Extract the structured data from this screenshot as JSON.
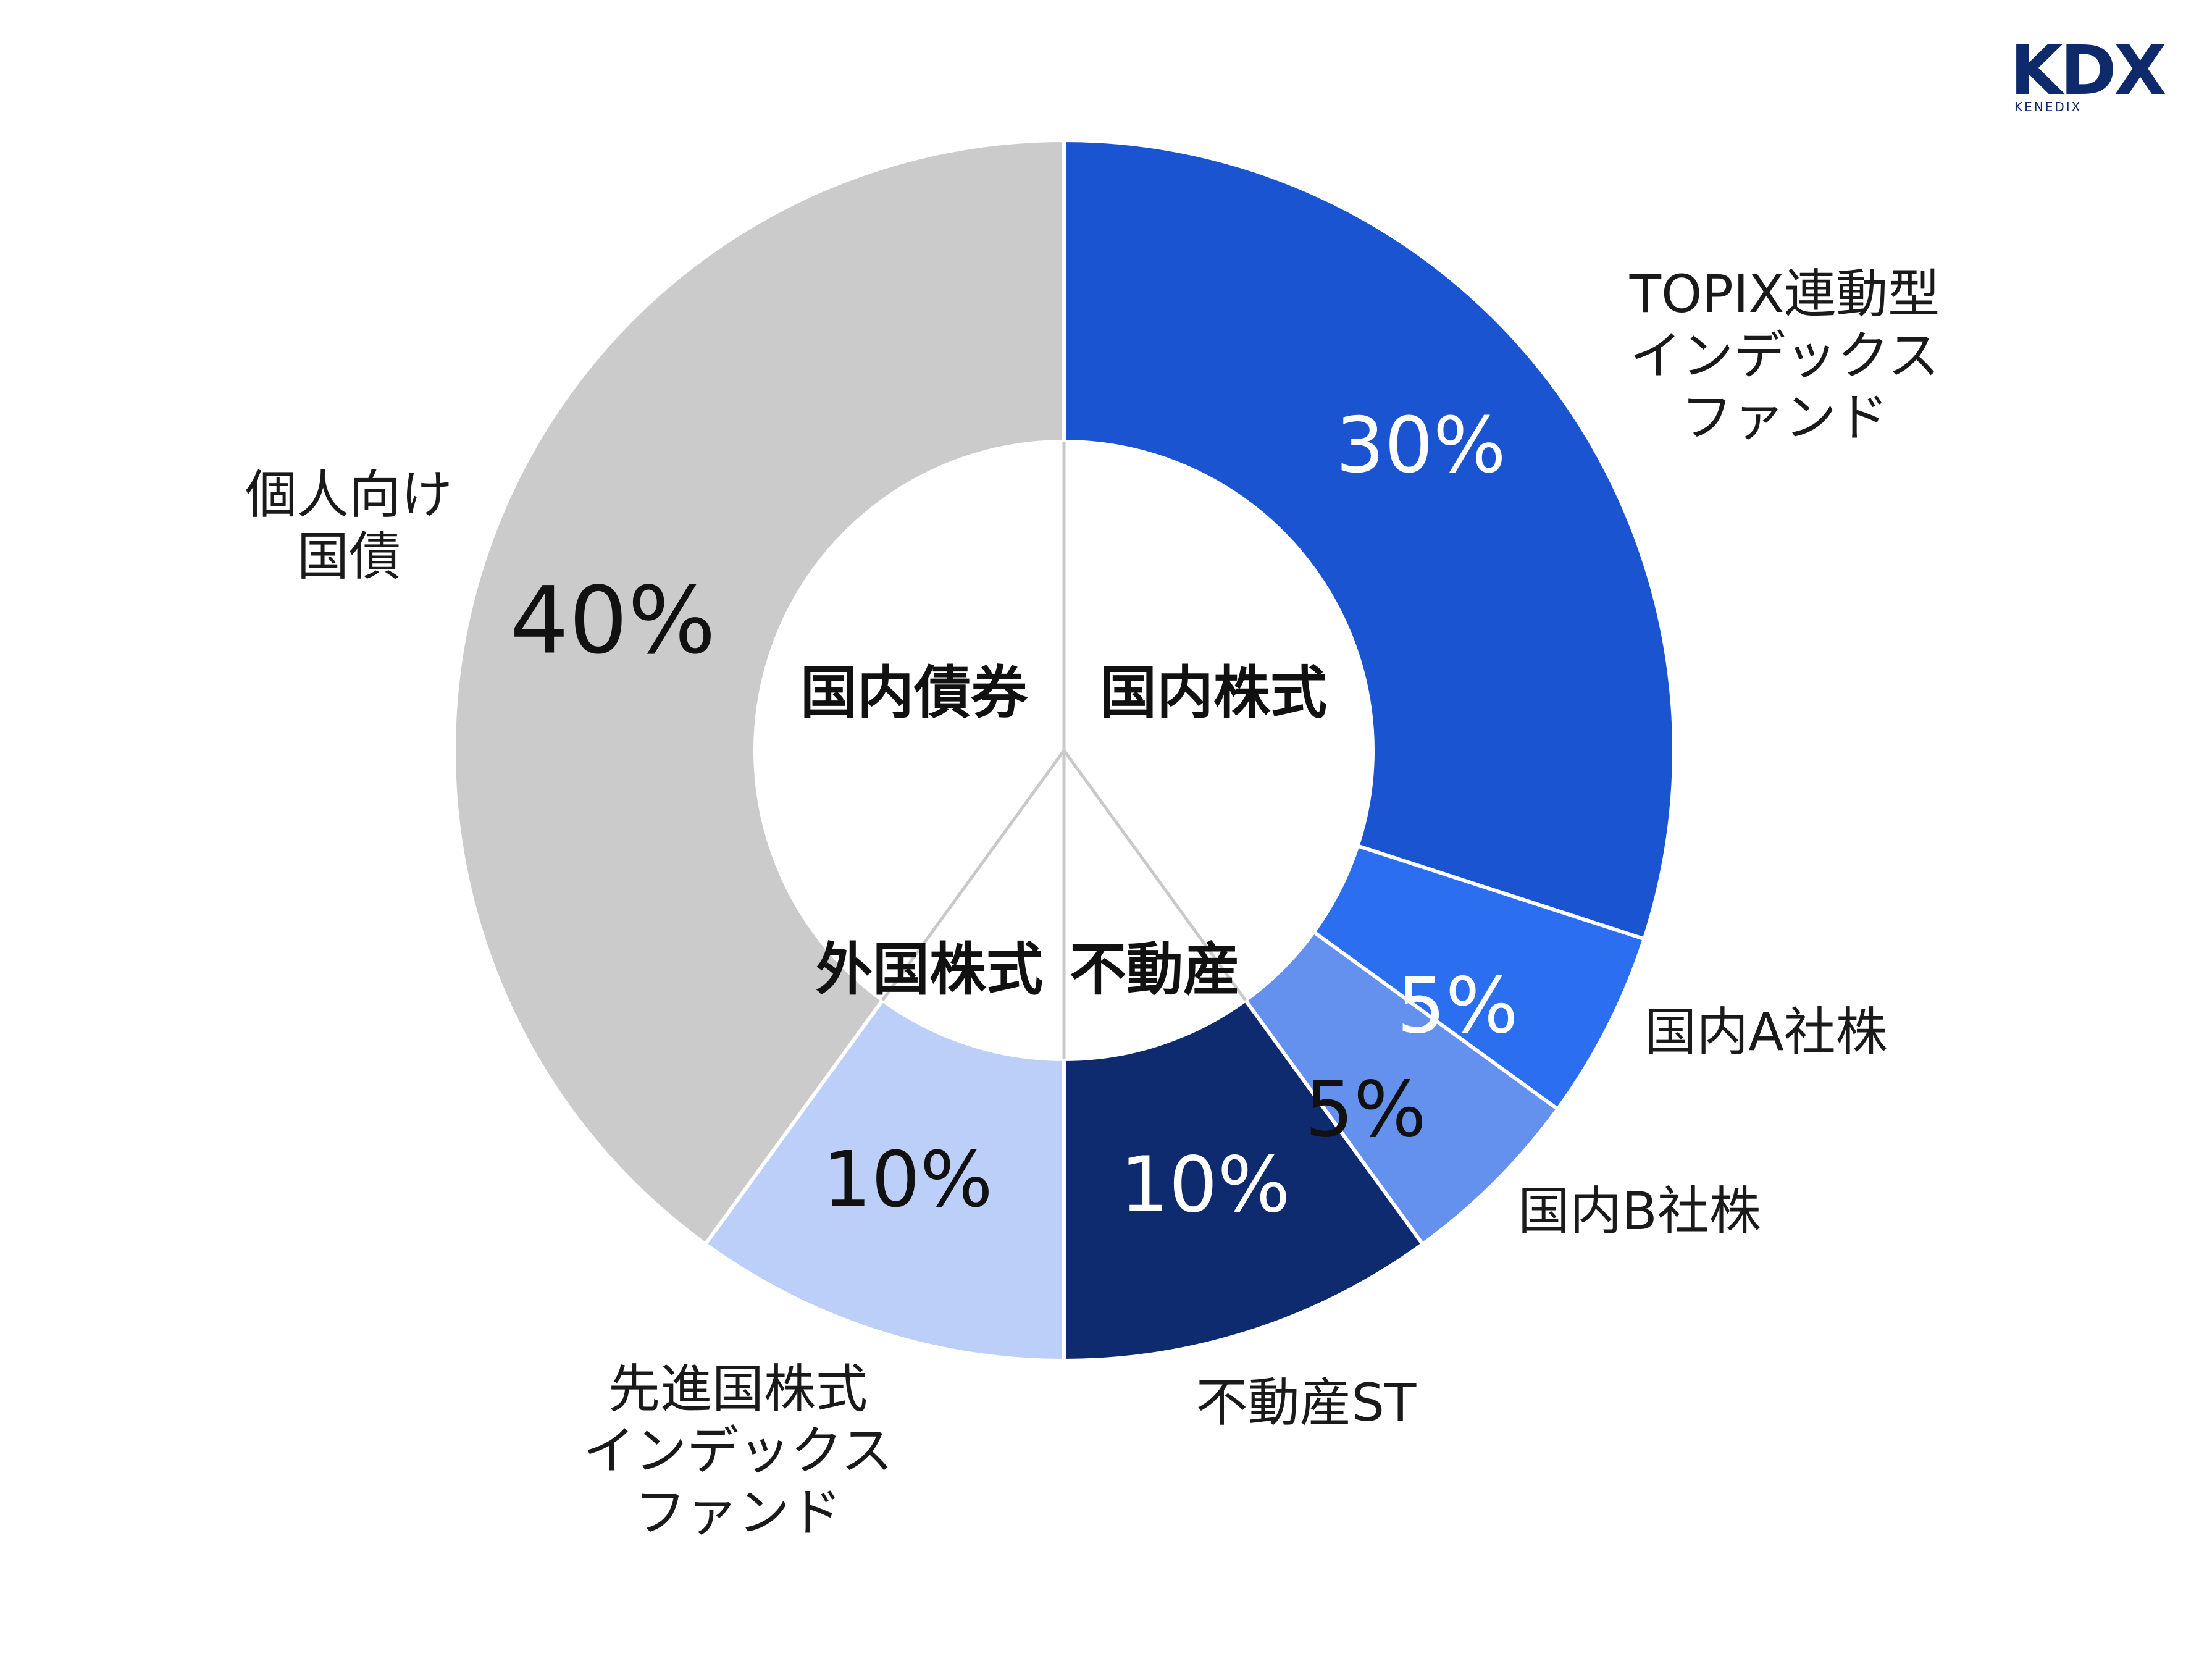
{
  "logo": {
    "main": "KDX",
    "sub": "KENEDIX"
  },
  "chart_data": {
    "type": "pie",
    "subtype": "nested-donut",
    "slices": [
      {
        "label": "TOPIX連動型インデックスファンド",
        "label_lines": [
          "TOPIX連動型",
          "インデックス",
          "ファンド"
        ],
        "value": 30,
        "value_label": "30%",
        "color": "#1a54d0",
        "text_color": "#ffffff",
        "category": "国内株式"
      },
      {
        "label": "国内A社株",
        "label_lines": [
          "国内A社株"
        ],
        "value": 5,
        "value_label": "5%",
        "color": "#2b6ff0",
        "text_color": "#ffffff",
        "category": "国内株式"
      },
      {
        "label": "国内B社株",
        "label_lines": [
          "国内B社株"
        ],
        "value": 5,
        "value_label": "5%",
        "color": "#6490ee",
        "text_color": "#111111",
        "category": "国内株式"
      },
      {
        "label": "不動産ST",
        "label_lines": [
          "不動産ST"
        ],
        "value": 10,
        "value_label": "10%",
        "color": "#0f2b70",
        "text_color": "#ffffff",
        "category": "不動産"
      },
      {
        "label": "先進国株式インデックスファンド",
        "label_lines": [
          "先進国株式",
          "インデックス",
          "ファンド"
        ],
        "value": 10,
        "value_label": "10%",
        "color": "#bccff8",
        "text_color": "#111111",
        "category": "外国株式"
      },
      {
        "label": "個人向け国債",
        "label_lines": [
          "個人向け",
          "国債"
        ],
        "value": 40,
        "value_label": "40%",
        "color": "#cbcbcb",
        "text_color": "#111111",
        "category": "国内債券"
      }
    ],
    "categories": [
      {
        "name": "国内株式",
        "value": 40
      },
      {
        "name": "不動産",
        "value": 10
      },
      {
        "name": "外国株式",
        "value": 10
      },
      {
        "name": "国内債券",
        "value": 40
      }
    ],
    "start_angle": "12 o'clock",
    "direction": "clockwise",
    "legend": "none"
  }
}
